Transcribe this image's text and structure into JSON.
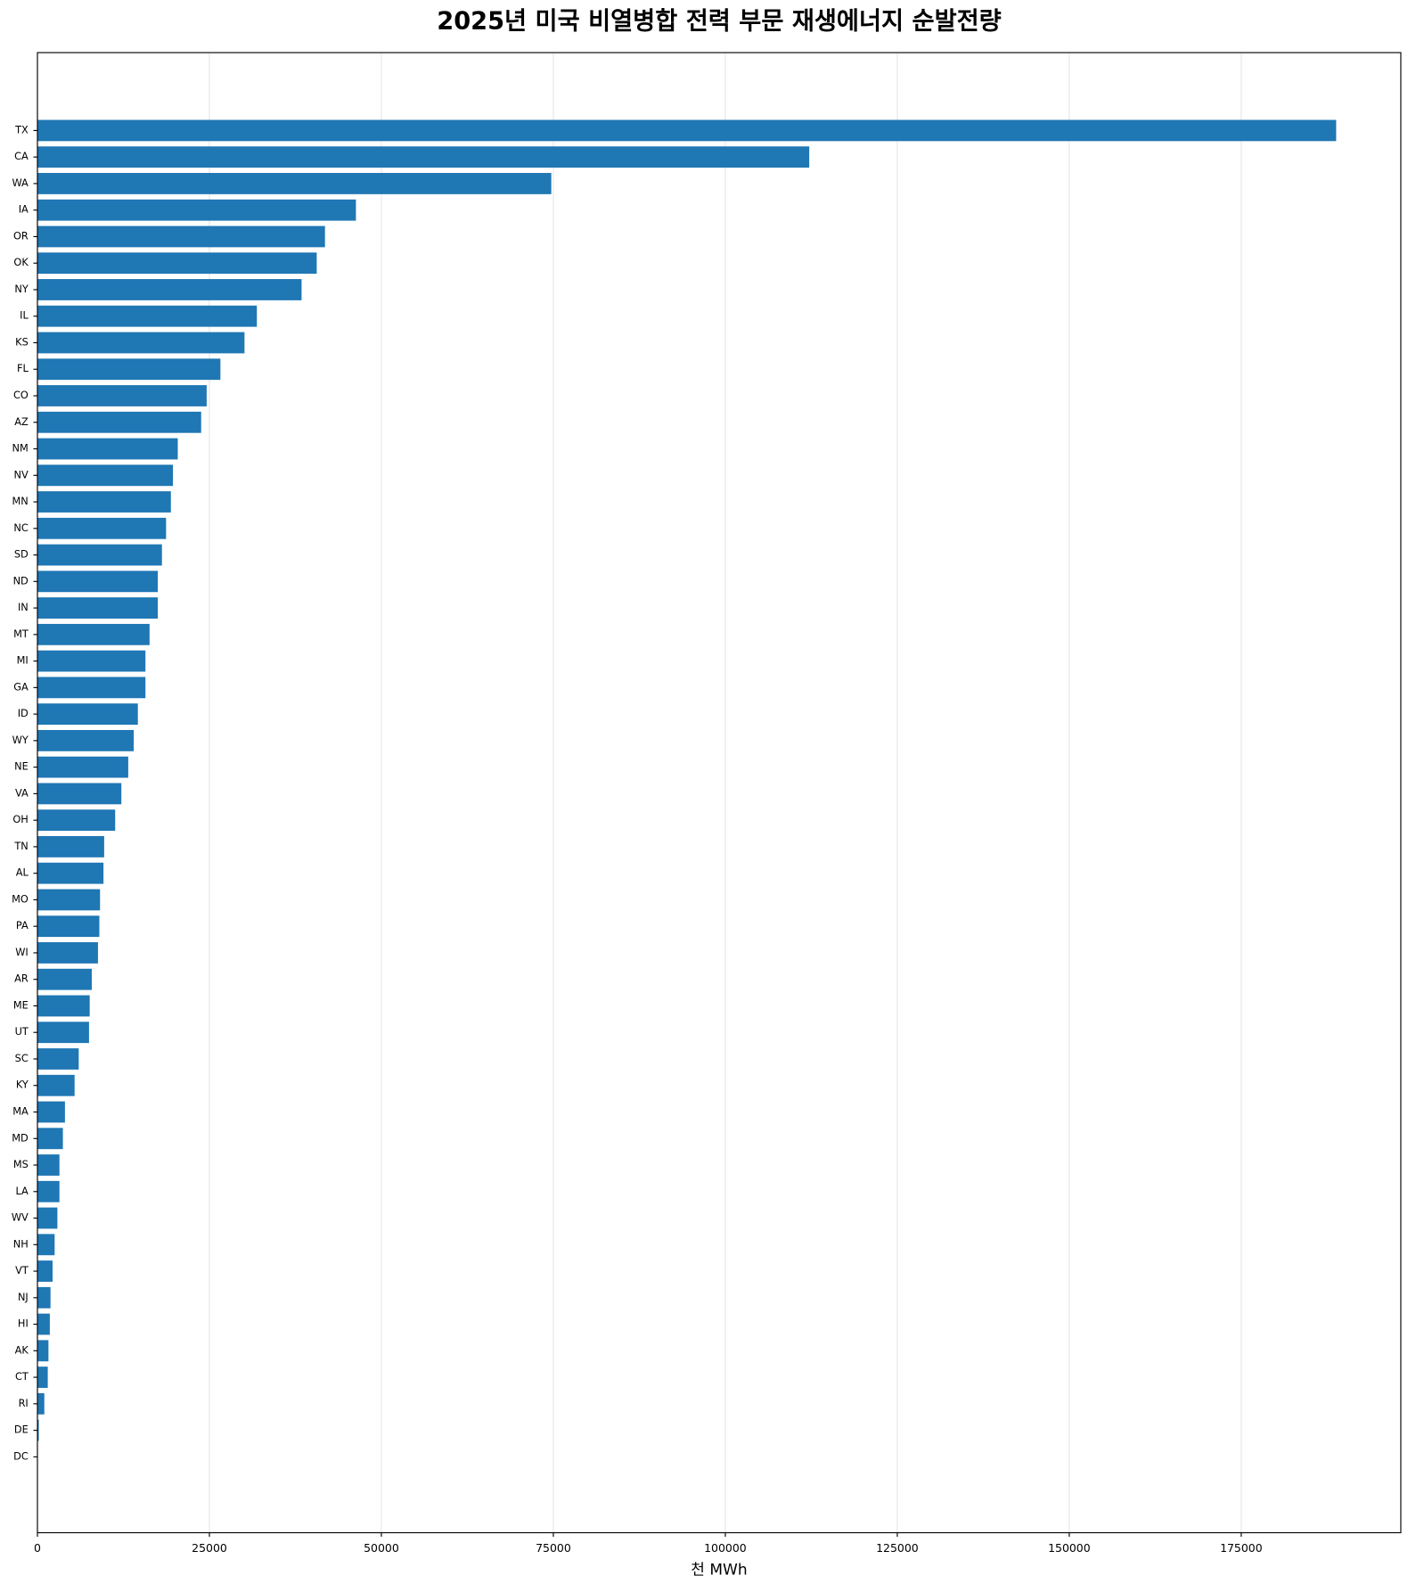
{
  "chart_data": {
    "type": "barh",
    "title": "2025년 미국 비열병합 전력 부문 재생에너지 순발전량",
    "xlabel": "천 MWh",
    "categories": [
      "TX",
      "CA",
      "WA",
      "IA",
      "OR",
      "OK",
      "NY",
      "IL",
      "KS",
      "FL",
      "CO",
      "AZ",
      "NM",
      "NV",
      "MN",
      "NC",
      "SD",
      "ND",
      "IN",
      "MT",
      "MI",
      "GA",
      "ID",
      "WY",
      "NE",
      "VA",
      "OH",
      "TN",
      "AL",
      "MO",
      "PA",
      "WI",
      "AR",
      "ME",
      "UT",
      "SC",
      "KY",
      "MA",
      "MD",
      "MS",
      "LA",
      "WV",
      "NH",
      "VT",
      "NJ",
      "HI",
      "AK",
      "CT",
      "RI",
      "DE",
      "DC"
    ],
    "values": [
      188800,
      112200,
      74700,
      46300,
      41800,
      40600,
      38400,
      31900,
      30100,
      26600,
      24600,
      23800,
      20400,
      19700,
      19400,
      18700,
      18100,
      17500,
      17500,
      16300,
      15700,
      15700,
      14600,
      14000,
      13200,
      12200,
      11300,
      9700,
      9600,
      9100,
      9000,
      8800,
      7900,
      7600,
      7500,
      6000,
      5400,
      4000,
      3700,
      3200,
      3200,
      2900,
      2500,
      2200,
      1900,
      1800,
      1600,
      1500,
      1000,
      200,
      0
    ],
    "color": "#1f77b4",
    "xlim": [
      0,
      198200
    ],
    "xticks": [
      0,
      25000,
      50000,
      75000,
      100000,
      125000,
      150000,
      175000
    ],
    "grid": true
  }
}
